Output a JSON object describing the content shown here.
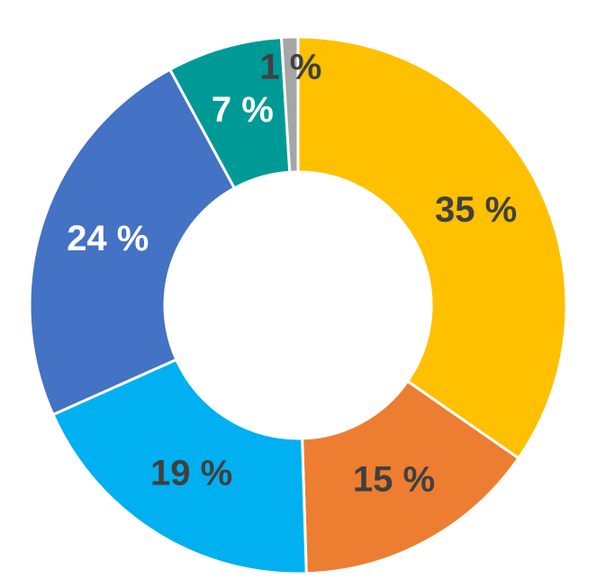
{
  "chart_data": {
    "type": "donut",
    "values": [
      35,
      15,
      19,
      24,
      7,
      1
    ],
    "value_labels": [
      "35 %",
      "15 %",
      "19 %",
      "24 %",
      "7 %",
      "1 %"
    ],
    "colors": [
      "#ffc000",
      "#ed7d31",
      "#00b0f0",
      "#4472c4",
      "#009a96",
      "#a5a5a5"
    ],
    "label_colors": [
      "#404040",
      "#404040",
      "#404040",
      "#ffffff",
      "#ffffff",
      "#404040"
    ]
  }
}
